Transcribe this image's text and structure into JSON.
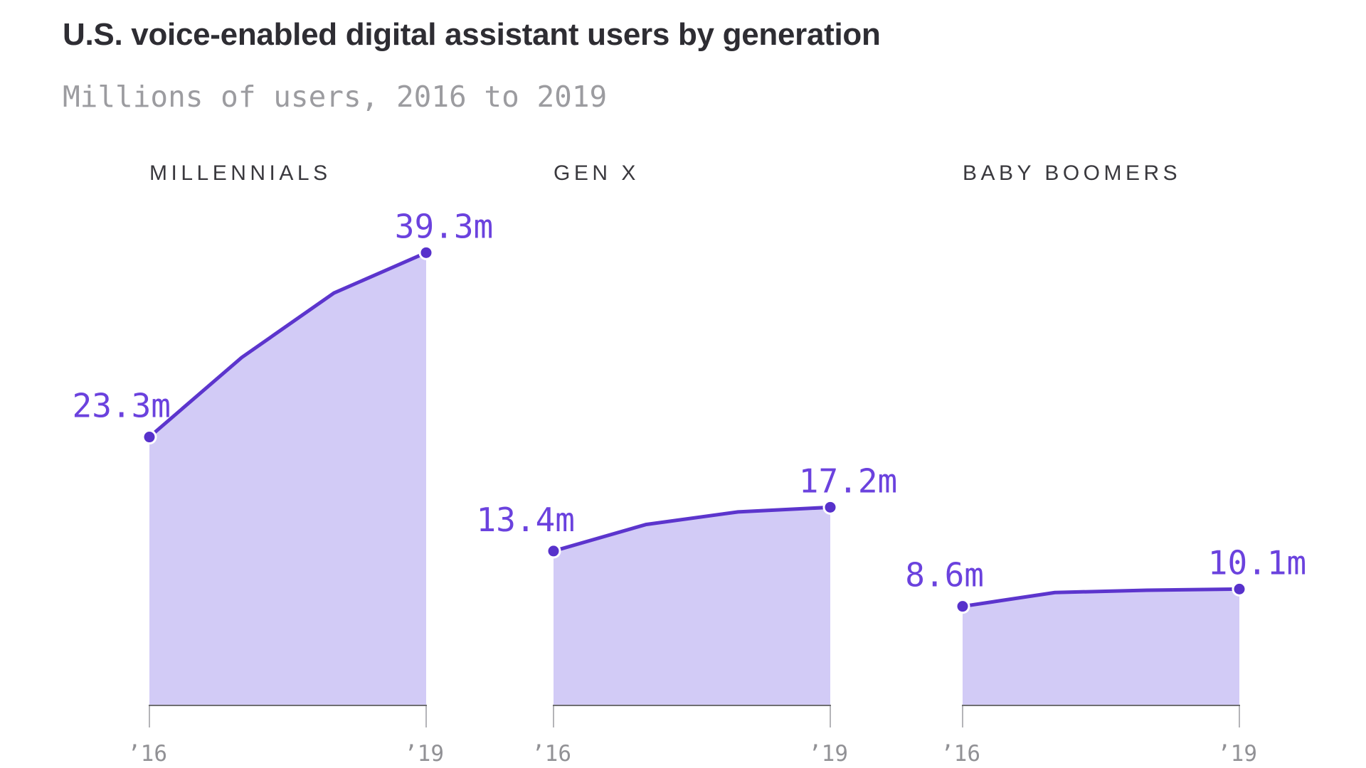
{
  "page": {
    "background": "#ffffff"
  },
  "header": {
    "title": "U.S. voice-enabled digital assistant users by generation",
    "subtitle": "Millions of users, 2016 to 2019"
  },
  "chart_data": {
    "type": "area",
    "title": "U.S. voice-enabled digital assistant users by generation",
    "subtitle": "Millions of users, 2016 to 2019",
    "unit": "millions of users",
    "x": [
      2016,
      2017,
      2018,
      2019
    ],
    "x_tick_labels": [
      "’16",
      "’19"
    ],
    "ylim": [
      0,
      61
    ],
    "grid": false,
    "legend": "none",
    "layout": "three small multiples side by side, shared baseline at zero",
    "series": [
      {
        "name": "MILLENNIALS",
        "values": [
          23.3,
          30.2,
          35.8,
          39.3
        ],
        "start_label": "23.3m",
        "end_label": "39.3m"
      },
      {
        "name": "GEN X",
        "values": [
          13.4,
          15.7,
          16.8,
          17.2
        ],
        "start_label": "13.4m",
        "end_label": "17.2m"
      },
      {
        "name": "BABY BOOMERS",
        "values": [
          8.6,
          9.8,
          10.0,
          10.1
        ],
        "start_label": "8.6m",
        "end_label": "10.1m"
      }
    ],
    "colors": {
      "line": "#5c35cd",
      "area_fill": "#d2cbf6",
      "dot": "#5731cb",
      "value_label": "#6b42de",
      "axis": "#6f6f71",
      "tick": "#b4b4b8",
      "tick_label": "#919195",
      "title": "#2e2d33",
      "subtitle": "#9c9ca0",
      "panel_title": "#3a393e"
    }
  }
}
